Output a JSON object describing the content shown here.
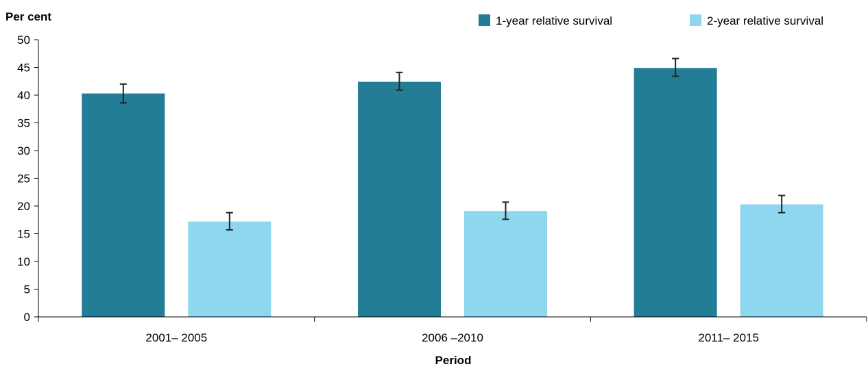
{
  "chart_data": {
    "type": "bar",
    "title": "",
    "xlabel": "Period",
    "ylabel": "Per cent",
    "ylim": [
      0,
      50
    ],
    "yticks": [
      0,
      5,
      10,
      15,
      20,
      25,
      30,
      35,
      40,
      45,
      50
    ],
    "categories": [
      "2001– 2005",
      "2006 –2010",
      "2011– 2015"
    ],
    "series": [
      {
        "name": "1-year relative survival",
        "color": "#237d96",
        "values": [
          40.3,
          42.4,
          44.9
        ],
        "error_low": [
          38.6,
          40.9,
          43.4
        ],
        "error_high": [
          42.0,
          44.1,
          46.6
        ]
      },
      {
        "name": "2-year relative survival",
        "color": "#8fd6ef",
        "values": [
          17.2,
          19.1,
          20.3
        ],
        "error_low": [
          15.7,
          17.6,
          18.8
        ],
        "error_high": [
          18.8,
          20.7,
          21.9
        ]
      }
    ],
    "legend_position": "top-right",
    "grid": false
  }
}
